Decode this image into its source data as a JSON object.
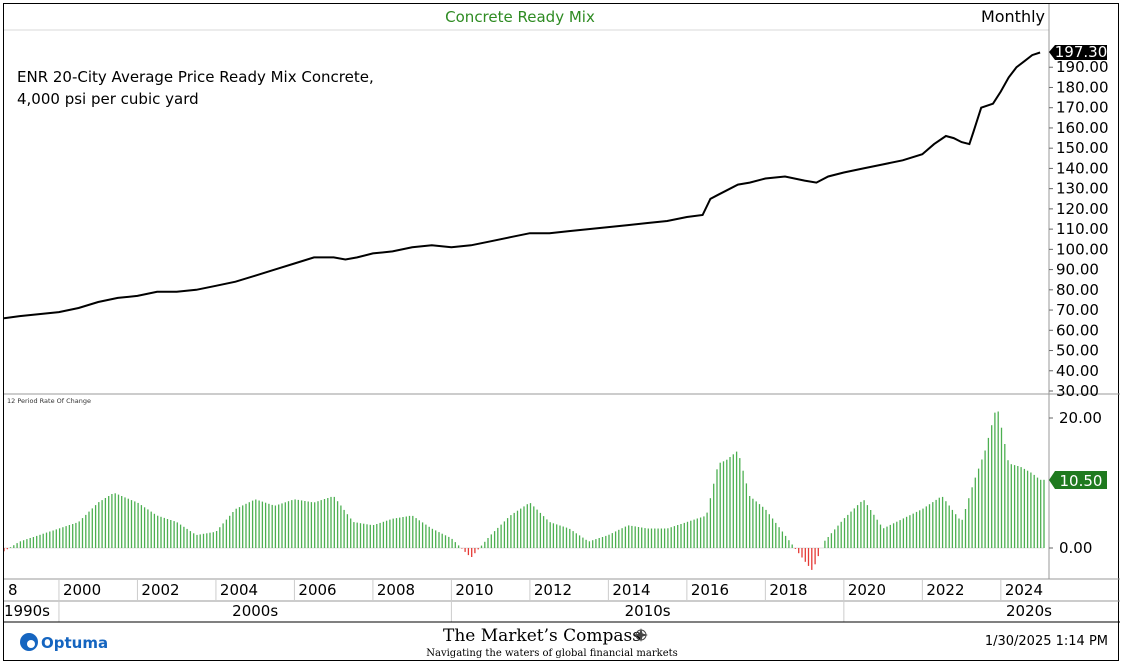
{
  "header": {
    "title": "Concrete Ready Mix",
    "period": "Monthly"
  },
  "annotation": {
    "line1": "ENR 20-City Average Price Ready Mix Concrete,",
    "line2": "4,000 psi per cubic yard"
  },
  "price_panel": {
    "last_value_label": "197.30",
    "tick_labels": [
      "190.00",
      "180.00",
      "170.00",
      "160.00",
      "150.00",
      "140.00",
      "130.00",
      "120.00",
      "110.00",
      "100.00",
      "90.00",
      "80.00",
      "70.00",
      "60.00",
      "50.00",
      "40.00",
      "30.00"
    ]
  },
  "roc_panel": {
    "label": "12 Period Rate Of Change",
    "last_value_label": "10.50",
    "tick_labels": [
      "20.00",
      "0.00"
    ]
  },
  "x_axis": {
    "year_labels": [
      "8",
      "2000",
      "2002",
      "2004",
      "2006",
      "2008",
      "2010",
      "2012",
      "2014",
      "2016",
      "2018",
      "2020",
      "2022",
      "2024"
    ],
    "decade_labels": [
      "1990s",
      "2000s",
      "2010s",
      "2020s"
    ]
  },
  "footer": {
    "optuma_logo": "Optuma",
    "brand_title": "The Market’s Compass",
    "brand_subtitle": "Navigating the waters of global financial markets",
    "timestamp": "1/30/2025 1:14 PM"
  },
  "colors": {
    "price_line": "#000000",
    "roc_positive": "#4caf50",
    "roc_negative": "#e53935",
    "title_color": "#2e8b22",
    "roc_badge": "#1f7a1f",
    "optuma_blue": "#1565c0"
  },
  "chart_data": [
    {
      "type": "line",
      "title": "Concrete Ready Mix",
      "frequency": "Monthly",
      "ylabel": "",
      "ylim": [
        30,
        200
      ],
      "x_range": [
        1998.6,
        2025.1
      ],
      "last_value": 197.3,
      "series": [
        {
          "x": [
            1998.6,
            1999.0,
            1999.5,
            2000.0,
            2000.5,
            2001.0,
            2001.5,
            2002.0,
            2002.5,
            2003.0,
            2003.5,
            2004.0,
            2004.5,
            2005.0,
            2005.5,
            2006.0,
            2006.5,
            2007.0,
            2007.3,
            2007.6,
            2008.0,
            2008.5,
            2009.0,
            2009.5,
            2010.0,
            2010.5,
            2011.0,
            2011.5,
            2012.0,
            2012.5,
            2013.0,
            2013.5,
            2014.0,
            2014.5,
            2015.0,
            2015.5,
            2016.0,
            2016.4,
            2016.6,
            2016.8,
            2017.0,
            2017.3,
            2017.6,
            2018.0,
            2018.5,
            2019.0,
            2019.3,
            2019.6,
            2020.0,
            2020.5,
            2021.0,
            2021.5,
            2022.0,
            2022.3,
            2022.6,
            2022.8,
            2023.0,
            2023.2,
            2023.3,
            2023.5,
            2023.8,
            2024.0,
            2024.2,
            2024.4,
            2024.6,
            2024.8,
            2025.0
          ],
          "values": [
            66,
            67,
            68,
            69,
            71,
            74,
            76,
            77,
            79,
            79,
            80,
            82,
            84,
            87,
            90,
            93,
            96,
            96,
            95,
            96,
            98,
            99,
            101,
            102,
            101,
            102,
            104,
            106,
            108,
            108,
            109,
            110,
            111,
            112,
            113,
            114,
            116,
            117,
            125,
            127,
            129,
            132,
            133,
            135,
            136,
            134,
            133,
            136,
            138,
            140,
            142,
            144,
            147,
            152,
            156,
            155,
            153,
            152,
            158,
            170,
            172,
            178,
            185,
            190,
            193,
            196,
            197.3
          ]
        }
      ]
    },
    {
      "type": "bar",
      "title": "12 Period Rate Of Change",
      "ylim": [
        -5,
        25
      ],
      "last_value": 10.5,
      "positive_color": "#4caf50",
      "negative_color": "#e53935",
      "x": [
        1998.6,
        1999.0,
        1999.5,
        2000.0,
        2000.5,
        2001.0,
        2001.4,
        2002.0,
        2002.5,
        2003.0,
        2003.5,
        2004.0,
        2004.5,
        2005.0,
        2005.5,
        2006.0,
        2006.5,
        2007.0,
        2007.5,
        2008.0,
        2008.5,
        2009.0,
        2009.5,
        2010.0,
        2010.5,
        2011.0,
        2011.5,
        2012.0,
        2012.5,
        2013.0,
        2013.5,
        2014.0,
        2014.5,
        2015.0,
        2015.5,
        2016.0,
        2016.5,
        2016.8,
        2017.0,
        2017.3,
        2017.6,
        2018.0,
        2018.5,
        2019.0,
        2019.2,
        2019.5,
        2020.0,
        2020.5,
        2021.0,
        2021.5,
        2022.0,
        2022.5,
        2023.0,
        2023.3,
        2023.6,
        2023.9,
        2024.2,
        2024.5,
        2024.8,
        2025.0
      ],
      "values": [
        -0.5,
        1.0,
        2.0,
        3.0,
        4.0,
        7.0,
        8.5,
        7.0,
        5.0,
        4.0,
        2.0,
        2.5,
        6.0,
        7.5,
        6.5,
        7.5,
        7.0,
        8.0,
        4.0,
        3.5,
        4.5,
        5.0,
        3.0,
        1.5,
        -1.5,
        2.0,
        5.0,
        7.0,
        4.0,
        3.0,
        1.0,
        2.0,
        3.5,
        3.0,
        3.0,
        4.0,
        5.0,
        13.0,
        13.5,
        15.0,
        8.0,
        6.0,
        2.0,
        -2.0,
        -3.5,
        1.0,
        4.5,
        7.5,
        3.0,
        4.5,
        6.0,
        8.0,
        4.0,
        10.0,
        15.0,
        22.0,
        13.0,
        12.5,
        11.5,
        10.5
      ]
    }
  ]
}
